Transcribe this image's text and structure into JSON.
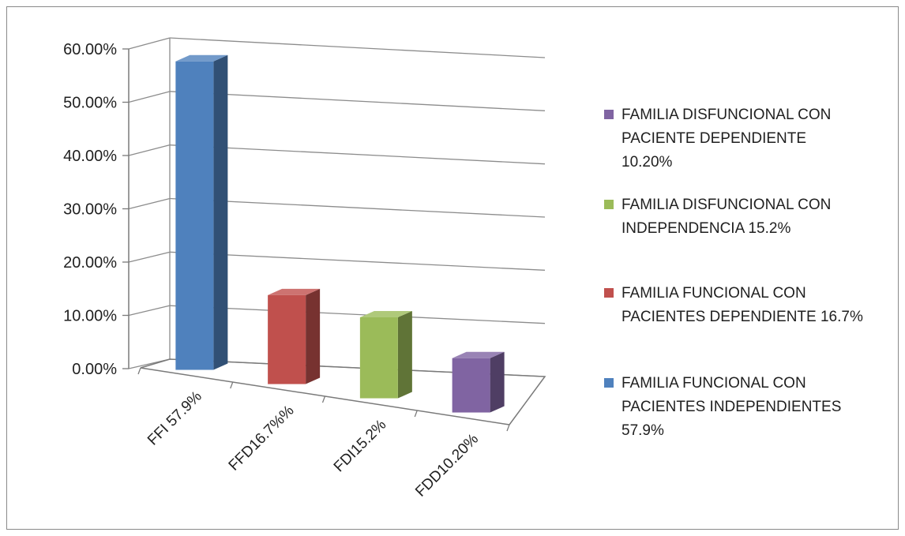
{
  "chart_data": {
    "type": "bar",
    "categories": [
      "FFI 57.9%",
      "FFD16.7%%",
      "FDI15.2%",
      "FDD10.20%"
    ],
    "values": [
      0.579,
      0.167,
      0.152,
      0.102
    ],
    "colors": [
      "#4f81bd",
      "#c0504d",
      "#9bbb59",
      "#8064a2"
    ],
    "y_ticks": [
      "0.00%",
      "10.00%",
      "20.00%",
      "30.00%",
      "40.00%",
      "50.00%",
      "60.00%"
    ],
    "ylim": [
      0,
      0.6
    ],
    "grid": true,
    "legend_position": "right",
    "legend": [
      {
        "lines": [
          "FAMILIA DISFUNCIONAL CON",
          "PACIENTE DEPENDIENTE",
          "10.20%"
        ],
        "color": "#8064a2"
      },
      {
        "lines": [
          "FAMILIA DISFUNCIONAL CON",
          "INDEPENDENCIA 15.2%"
        ],
        "color": "#9bbb59"
      },
      {
        "lines": [
          "FAMILIA FUNCIONAL CON",
          "PACIENTES DEPENDIENTE 16.7%"
        ],
        "color": "#c0504d"
      },
      {
        "lines": [
          "FAMILIA FUNCIONAL CON",
          "PACIENTES INDEPENDIENTES",
          "57.9%"
        ],
        "color": "#4f81bd"
      }
    ]
  }
}
